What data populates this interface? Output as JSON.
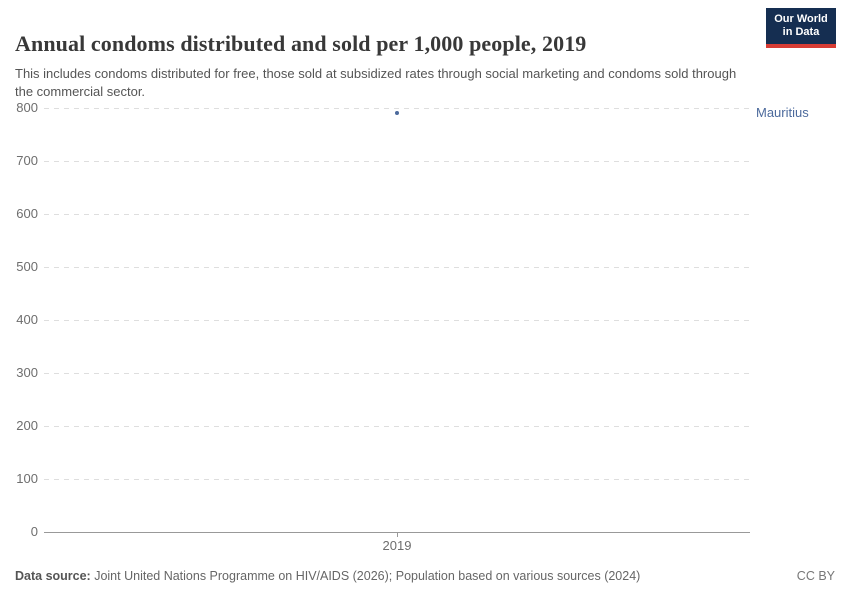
{
  "header": {
    "title": "Annual condoms distributed and sold per 1,000 people, 2019",
    "subtitle": "This includes condoms distributed for free, those sold at subsidized rates through social marketing and condoms sold through the commercial sector.",
    "logo": {
      "line1": "Our World",
      "line2": "in Data"
    }
  },
  "chart_data": {
    "type": "scatter",
    "title": "Annual condoms distributed and sold per 1,000 people, 2019",
    "x": [
      2019
    ],
    "xticklabels": [
      "2019"
    ],
    "series": [
      {
        "name": "Mauritius",
        "values": [
          790
        ],
        "color": "#4c6a9c"
      }
    ],
    "xlabel": "",
    "ylabel": "",
    "ylim": [
      0,
      800
    ],
    "yticks": [
      0,
      100,
      200,
      300,
      400,
      500,
      600,
      700,
      800
    ],
    "grid": true,
    "gridline_color": "#dedede",
    "axis_color": "#999999",
    "legend_position": "label-right-of-plot"
  },
  "footer": {
    "source_label": "Data source:",
    "source_text": " Joint United Nations Programme on HIV/AIDS (2026); Population based on various sources (2024)",
    "license": "CC BY"
  },
  "colors": {
    "logo_bg": "#152e51",
    "logo_stripe": "#d73c34",
    "title_text": "#383838",
    "entity_blue": "#4c6a9c"
  }
}
